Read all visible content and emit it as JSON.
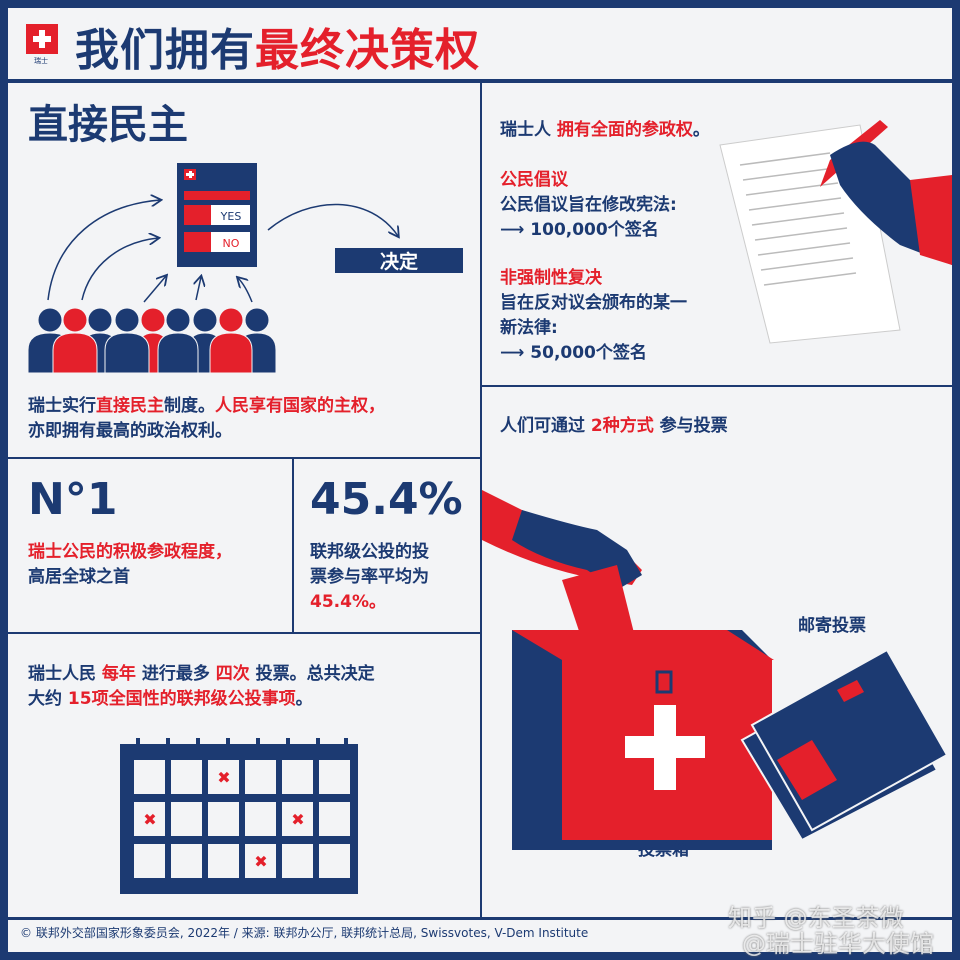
{
  "header": {
    "logo_label": "瑞士",
    "title_part1": "我们拥有",
    "title_part2": "最终决策权"
  },
  "direct_democracy": {
    "heading": "直接民主",
    "ballot_yes": "YES",
    "ballot_no": "NO",
    "decision_label": "决定",
    "desc_part1": "瑞士实行",
    "desc_part2": "直接民主",
    "desc_part3": "制度。",
    "desc_part4": "人民享有国家的主权，",
    "desc_line2": "亦即拥有最高的政治权利。"
  },
  "rights": {
    "intro_part1": "瑞士人 ",
    "intro_part2": "拥有全面的参政权",
    "intro_part3": "。",
    "initiative_title": "公民倡议",
    "initiative_line1": "公民倡议旨在修改宪法:",
    "initiative_line2": "⟶ 100,000个签名",
    "referendum_title": "非强制性复决",
    "referendum_line1": "旨在反对议会颁布的某一",
    "referendum_line2": "新法律:",
    "referendum_line3": "⟶ 50,000个签名"
  },
  "rank": {
    "value": "N°1",
    "line1": "瑞士公民的积极参政程度，",
    "line2": "高居全球之首"
  },
  "turnout": {
    "value": "45.4%",
    "line1": "联邦级公投的投",
    "line2": "票参与率平均为",
    "line3": "45.4%。",
    "fraction": 0.454
  },
  "voting": {
    "intro_part1": "人们可通过 ",
    "intro_part2": "2种方式",
    "intro_part3": " 参与投票",
    "postal_label": "邮寄投票",
    "ballot_box_label": "投票箱"
  },
  "frequency": {
    "p1": "瑞士人民 ",
    "p2": "每年",
    "p3": " 进行最多 ",
    "p4": "四次",
    "p5": " 投票。总共决定",
    "p6": "大约 ",
    "p7": "15项全国性的联邦级公投事项",
    "p8": "。"
  },
  "footer": {
    "credit": "© 联邦外交部国家形象委员会, 2022年 / 来源: 联邦办公厅, 联邦统计总局, Swissvotes, V-Dem Institute"
  },
  "watermark": {
    "line1": "知乎 @东圣茶微",
    "line2": "@瑞士驻华大使馆"
  },
  "colors": {
    "navy": "#1c3a72",
    "red": "#e4202b",
    "background": "#f3f4f6"
  }
}
